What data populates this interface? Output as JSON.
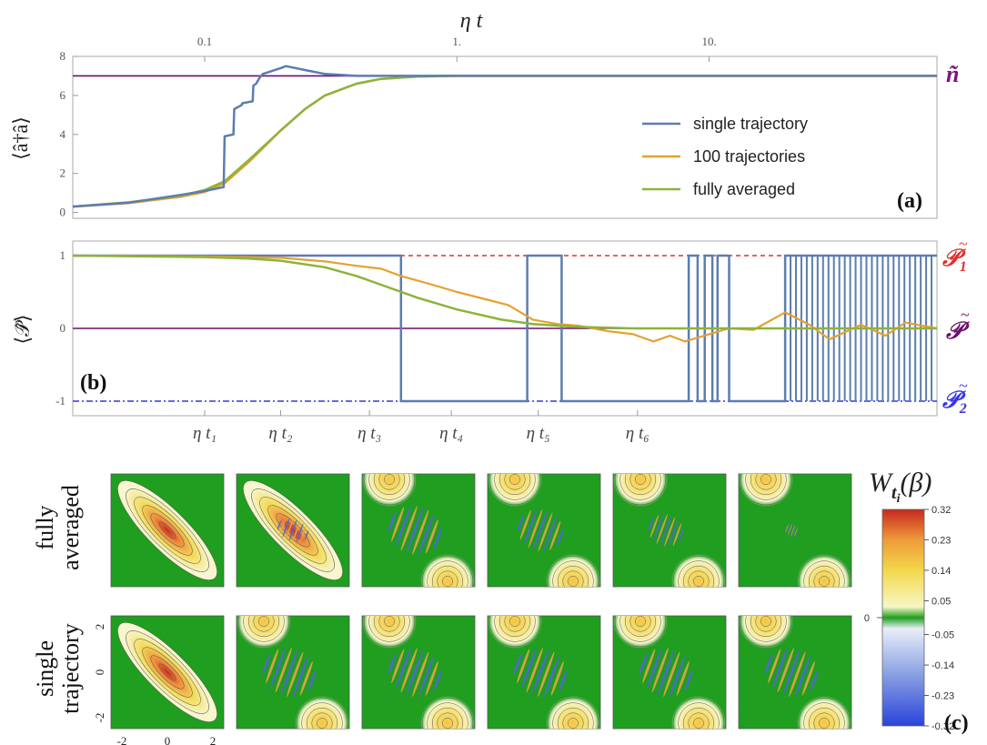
{
  "chart_data": [
    {
      "type": "line",
      "panel": "(a)",
      "xlabel": "η t",
      "xscale": "log",
      "xlim": [
        0.03,
        80
      ],
      "x_ticks": [
        0.1,
        1,
        10
      ],
      "x_tick_labels": [
        "0.1",
        "1.",
        "10."
      ],
      "ylabel": "⟨â†â⟩",
      "ylim": [
        -0.3,
        8
      ],
      "y_ticks": [
        0,
        2,
        4,
        6,
        8
      ],
      "reference_line": {
        "value": 7,
        "label": "ñ",
        "color": "#6b0f6b"
      },
      "legend_position": "center-right",
      "series": [
        {
          "name": "single trajectory",
          "color": "#5b7db1",
          "x": [
            0.03,
            0.05,
            0.08,
            0.1,
            0.119,
            0.12,
            0.13,
            0.131,
            0.14,
            0.141,
            0.155,
            0.156,
            0.16,
            0.165,
            0.17,
            0.2,
            0.21,
            0.25,
            0.3,
            0.4,
            0.5,
            1,
            10,
            80
          ],
          "y": [
            0.3,
            0.5,
            0.9,
            1.1,
            1.3,
            3.9,
            4.0,
            5.3,
            5.5,
            5.6,
            5.7,
            6.5,
            6.6,
            6.9,
            7.1,
            7.4,
            7.5,
            7.3,
            7.1,
            7.0,
            7.0,
            7.0,
            7.0,
            7.0
          ]
        },
        {
          "name": "100 trajectories",
          "color": "#e4a12f",
          "x": [
            0.03,
            0.05,
            0.08,
            0.1,
            0.12,
            0.15,
            0.2,
            0.25,
            0.3,
            0.4,
            0.5,
            0.7,
            1,
            2,
            10,
            80
          ],
          "y": [
            0.3,
            0.48,
            0.8,
            1.05,
            1.5,
            2.6,
            4.2,
            5.3,
            6.0,
            6.6,
            6.85,
            6.97,
            7.0,
            7.0,
            7.0,
            7.0
          ]
        },
        {
          "name": "fully averaged",
          "color": "#8db33a",
          "x": [
            0.03,
            0.05,
            0.08,
            0.1,
            0.12,
            0.15,
            0.2,
            0.25,
            0.3,
            0.4,
            0.5,
            0.7,
            1,
            2,
            10,
            80
          ],
          "y": [
            0.3,
            0.52,
            0.85,
            1.15,
            1.6,
            2.7,
            4.2,
            5.3,
            6.0,
            6.6,
            6.85,
            6.97,
            7.0,
            7.0,
            7.0,
            7.0
          ]
        }
      ]
    },
    {
      "type": "line",
      "panel": "(b)",
      "xscale": "log",
      "xlim": [
        0.03,
        80
      ],
      "ylabel": "⟨𝒫̂⟩",
      "ylim": [
        -1.2,
        1.2
      ],
      "y_ticks": [
        -1,
        0,
        1
      ],
      "time_markers": [
        {
          "label": "η t₁",
          "x": 0.1
        },
        {
          "label": "η t₂",
          "x": 0.2
        },
        {
          "label": "η t₃",
          "x": 0.45
        },
        {
          "label": "η t₄",
          "x": 0.95
        },
        {
          "label": "η t₅",
          "x": 2.1
        },
        {
          "label": "η t₆",
          "x": 5.2
        }
      ],
      "reference_lines": [
        {
          "value": 1,
          "label": "𝒫₁",
          "color": "#e0312b",
          "style": "dashed"
        },
        {
          "value": 0,
          "label": "𝒫",
          "color": "#6b0f6b",
          "style": "solid"
        },
        {
          "value": -1,
          "label": "𝒫₂",
          "color": "#3535e8",
          "style": "dash-dot"
        }
      ],
      "series": [
        {
          "name": "single trajectory",
          "color": "#5b7db1",
          "x": [
            0.03,
            0.6,
            0.6,
            1.9,
            1.9,
            2.6,
            2.6,
            8.3,
            8.3,
            9.0,
            9.0,
            9.6,
            9.6,
            10.3,
            10.3,
            10.8,
            10.8,
            12,
            12,
            20,
            20,
            80
          ],
          "y": [
            1,
            1,
            -1,
            -1,
            1,
            1,
            -1,
            -1,
            1,
            1,
            -1,
            -1,
            1,
            1,
            -1,
            -1,
            1,
            1,
            -1,
            -1,
            1,
            1
          ]
        },
        {
          "name": "100 trajectories",
          "color": "#e4a12f",
          "x": [
            0.03,
            0.1,
            0.2,
            0.3,
            0.4,
            0.5,
            0.6,
            0.8,
            1.0,
            1.3,
            1.6,
            2.0,
            2.5,
            3.0,
            4.0,
            5.0,
            6.0,
            7.0,
            8.0,
            10,
            12,
            15,
            20,
            25,
            30,
            40,
            50,
            60,
            80
          ],
          "y": [
            1,
            0.99,
            0.97,
            0.92,
            0.86,
            0.82,
            0.72,
            0.6,
            0.5,
            0.4,
            0.32,
            0.12,
            0.06,
            0.04,
            -0.04,
            -0.08,
            -0.18,
            -0.1,
            -0.18,
            -0.08,
            0.0,
            -0.02,
            0.22,
            0.05,
            -0.15,
            0.05,
            -0.1,
            0.08,
            0.0
          ]
        },
        {
          "name": "fully averaged",
          "color": "#8db33a",
          "x": [
            0.03,
            0.1,
            0.15,
            0.2,
            0.3,
            0.4,
            0.5,
            0.7,
            1.0,
            1.5,
            2.0,
            3.0,
            5.0,
            10,
            80
          ],
          "y": [
            1,
            0.98,
            0.96,
            0.93,
            0.84,
            0.72,
            0.6,
            0.42,
            0.26,
            0.12,
            0.06,
            0.02,
            0.0,
            0.0,
            0.0
          ]
        }
      ]
    },
    {
      "type": "heatmap",
      "panel": "(c)",
      "title": "W_{t_i}(β)",
      "row_labels": [
        "fully averaged",
        "single trajectory"
      ],
      "columns": [
        "t1",
        "t2",
        "t3",
        "t4",
        "t5",
        "t6"
      ],
      "axis_ticks": [
        "-2",
        "0",
        "2"
      ],
      "colorbar": {
        "ticks": [
          "0.32",
          "0.23",
          "0.14",
          "0.05",
          "0",
          "-0.05",
          "-0.14",
          "-0.23",
          "-0.32"
        ],
        "values": [
          0.32,
          0.23,
          0.14,
          0.05,
          0,
          -0.05,
          -0.14,
          -0.23,
          -0.32
        ]
      }
    }
  ],
  "text": {
    "xaxis_title": "η t",
    "ylabel_a": "⟨â†â⟩",
    "ylabel_b": "⟨𝒫̂⟩",
    "side_n": "ñ",
    "side_p1_main": "𝒫",
    "side_p1_sub": "1",
    "side_p0": "𝒫",
    "side_p2_main": "𝒫",
    "side_p2_sub": "2",
    "tag_a": "(a)",
    "tag_b": "(b)",
    "tag_c": "(c)",
    "row1_line1": "fully",
    "row1_line2": "averaged",
    "row2_line1": "single",
    "row2_line2": "trajectory",
    "cb_title_main": "W",
    "cb_title_sub": "t",
    "cb_title_subsub": "i",
    "cb_title_arg": "(β)"
  }
}
